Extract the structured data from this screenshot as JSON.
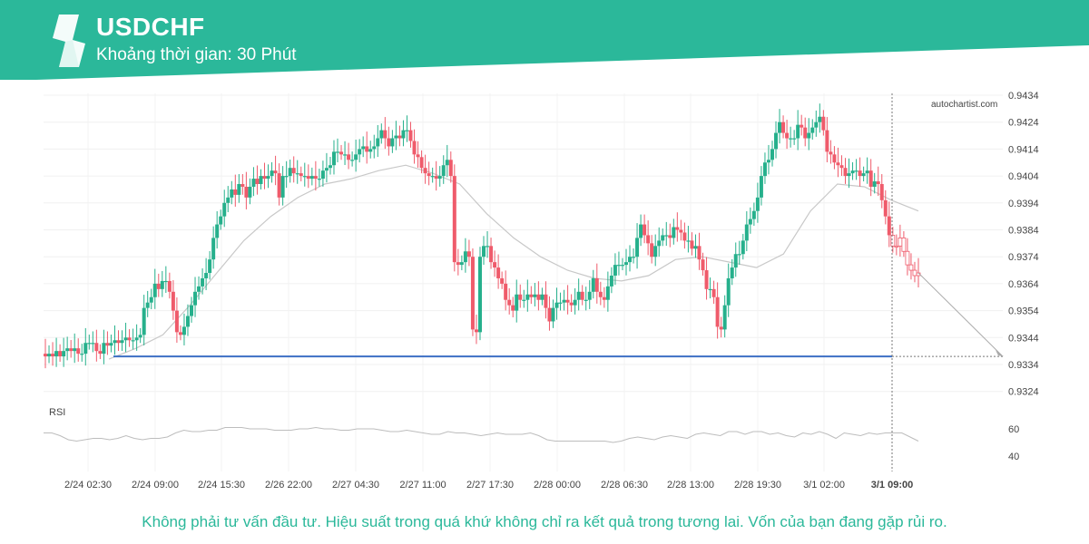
{
  "header": {
    "symbol": "USDCHF",
    "interval": "Khoảng thời gian: 30 Phút",
    "brand_color": "#2bb89a",
    "logo_icon": "autochartist-logo-icon"
  },
  "watermark": "autochartist.com",
  "disclaimer": "Không phải tư vấn đầu tư. Hiệu suất trong quá khứ không chỉ ra kết quả trong tương lai. Vốn của bạn đang gặp rủi ro.",
  "chart_data": {
    "type": "candlestick",
    "symbol": "USDCHF",
    "timeframe": "30 min",
    "y_ticks": [
      0.9434,
      0.9424,
      0.9414,
      0.9404,
      0.9394,
      0.9384,
      0.9374,
      0.9364,
      0.9354,
      0.9344,
      0.9334,
      0.9324
    ],
    "ylim": [
      0.9318,
      0.9437
    ],
    "x_ticks": [
      "2/24 02:30",
      "2/24 09:00",
      "2/24 15:30",
      "2/26 22:00",
      "2/27 04:30",
      "2/27 11:00",
      "2/27 17:30",
      "2/28 00:00",
      "2/28 06:30",
      "2/28 13:00",
      "2/28 19:30",
      "3/1 02:00"
    ],
    "current_time_label": "3/1 09:00",
    "up_color": "#26b08c",
    "down_color": "#ef5b6b",
    "support_level": 0.9337,
    "forecast_target": 0.9337,
    "close_series": [
      0.9337,
      0.9338,
      0.9337,
      0.9339,
      0.9337,
      0.9339,
      0.934,
      0.9339,
      0.934,
      0.9338,
      0.9338,
      0.9342,
      0.9342,
      0.9342,
      0.9339,
      0.9338,
      0.9342,
      0.9341,
      0.9342,
      0.9343,
      0.9342,
      0.9343,
      0.9344,
      0.9343,
      0.9343,
      0.9344,
      0.9345,
      0.9355,
      0.9357,
      0.9359,
      0.9364,
      0.9362,
      0.9365,
      0.9365,
      0.9361,
      0.9354,
      0.9346,
      0.9345,
      0.9348,
      0.9352,
      0.9356,
      0.9361,
      0.9363,
      0.9366,
      0.9368,
      0.9373,
      0.9381,
      0.9386,
      0.9389,
      0.9394,
      0.9396,
      0.9399,
      0.9397,
      0.9401,
      0.94,
      0.9396,
      0.94,
      0.9403,
      0.9401,
      0.9404,
      0.9403,
      0.9404,
      0.9406,
      0.9405,
      0.9396,
      0.9404,
      0.9404,
      0.9407,
      0.9405,
      0.9405,
      0.9404,
      0.9404,
      0.9403,
      0.9404,
      0.9403,
      0.9403,
      0.9406,
      0.9407,
      0.9408,
      0.9413,
      0.9413,
      0.9412,
      0.9412,
      0.941,
      0.941,
      0.9412,
      0.9414,
      0.9415,
      0.9413,
      0.9414,
      0.9415,
      0.9418,
      0.9421,
      0.9418,
      0.9415,
      0.9418,
      0.9419,
      0.9418,
      0.9421,
      0.9421,
      0.9417,
      0.9412,
      0.9411,
      0.9407,
      0.9405,
      0.9404,
      0.9404,
      0.9403,
      0.9404,
      0.9408,
      0.941,
      0.9404,
      0.9372,
      0.9371,
      0.9372,
      0.9376,
      0.9374,
      0.9347,
      0.9346,
      0.9374,
      0.9378,
      0.9378,
      0.9372,
      0.937,
      0.9366,
      0.9364,
      0.9358,
      0.9356,
      0.9354,
      0.936,
      0.9358,
      0.9358,
      0.936,
      0.9359,
      0.936,
      0.9358,
      0.936,
      0.9355,
      0.935,
      0.9355,
      0.9357,
      0.9357,
      0.9358,
      0.9357,
      0.9356,
      0.9358,
      0.9361,
      0.9358,
      0.9358,
      0.9361,
      0.9366,
      0.9361,
      0.9359,
      0.9358,
      0.9363,
      0.9367,
      0.9371,
      0.9371,
      0.9371,
      0.9372,
      0.9374,
      0.9374,
      0.9381,
      0.9386,
      0.9382,
      0.9379,
      0.9374,
      0.9378,
      0.938,
      0.9382,
      0.9382,
      0.9381,
      0.9385,
      0.9384,
      0.9383,
      0.938,
      0.938,
      0.9377,
      0.9378,
      0.9373,
      0.9369,
      0.9362,
      0.9362,
      0.9359,
      0.9348,
      0.9347,
      0.9356,
      0.9366,
      0.937,
      0.9375,
      0.9375,
      0.938,
      0.9386,
      0.9388,
      0.9391,
      0.9396,
      0.9404,
      0.9409,
      0.941,
      0.9414,
      0.942,
      0.9424,
      0.942,
      0.9418,
      0.9418,
      0.9418,
      0.9423,
      0.9422,
      0.9418,
      0.942,
      0.9422,
      0.9424,
      0.9426,
      0.9421,
      0.9413,
      0.9412,
      0.9409,
      0.9408,
      0.9407,
      0.9404,
      0.9405,
      0.9406,
      0.9406,
      0.9404,
      0.9405,
      0.9406,
      0.94,
      0.9402,
      0.9401,
      0.9395,
      0.9389,
      0.9382,
      0.9378,
      0.9378,
      0.9381,
      0.9376,
      0.9371,
      0.9369,
      0.9367,
      0.9368
    ],
    "ma_series": [
      0.9336,
      0.934,
      0.9345,
      0.9356,
      0.9368,
      0.938,
      0.9389,
      0.9396,
      0.9401,
      0.9403,
      0.9406,
      0.9408,
      0.9405,
      0.9401,
      0.939,
      0.9381,
      0.9374,
      0.9369,
      0.9366,
      0.9365,
      0.9367,
      0.9373,
      0.9374,
      0.9372,
      0.937,
      0.9375,
      0.9391,
      0.9401,
      0.94,
      0.9395,
      0.9391
    ],
    "rsi": {
      "label": "RSI",
      "y_ticks": [
        60,
        40
      ],
      "ylim": [
        35,
        70
      ],
      "values": [
        57,
        57,
        55,
        52,
        51,
        52,
        53,
        53,
        52,
        53,
        55,
        53,
        52,
        53,
        53,
        54,
        57,
        59,
        58,
        58,
        59,
        59,
        61,
        61,
        61,
        60,
        60,
        60,
        59,
        59,
        59,
        60,
        60,
        61,
        60,
        60,
        59,
        59,
        60,
        60,
        60,
        59,
        58,
        58,
        59,
        58,
        57,
        56,
        56,
        58,
        57,
        57,
        56,
        55,
        56,
        57,
        56,
        56,
        56,
        57,
        55,
        52,
        51,
        51,
        51,
        51,
        51,
        51,
        51,
        50,
        51,
        53,
        54,
        53,
        52,
        54,
        55,
        54,
        53,
        56,
        57,
        56,
        55,
        58,
        58,
        56,
        58,
        58,
        56,
        57,
        55,
        54,
        57,
        56,
        58,
        56,
        53,
        57,
        56,
        55,
        57,
        56,
        57,
        57,
        57,
        54,
        51
      ]
    }
  }
}
